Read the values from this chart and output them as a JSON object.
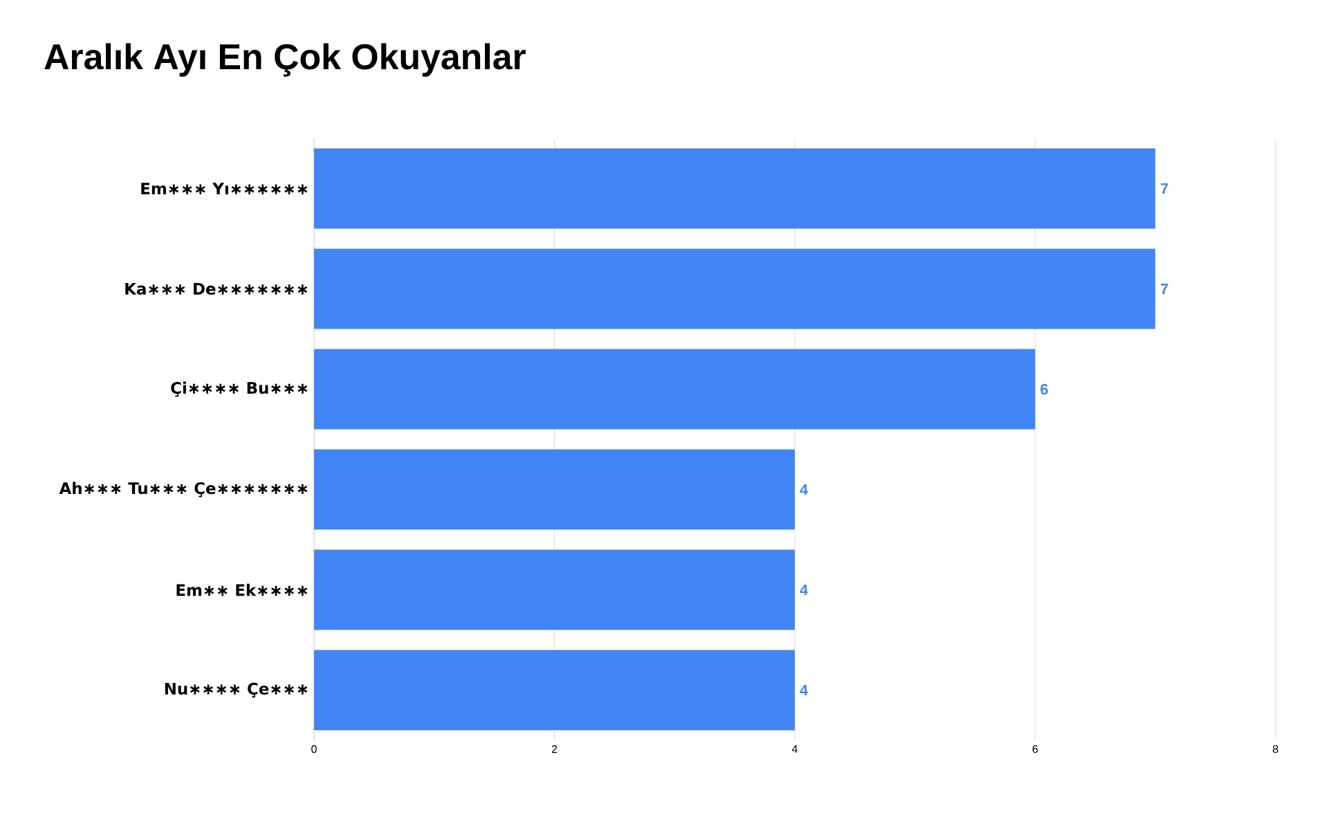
{
  "chart_data": {
    "type": "bar",
    "orientation": "horizontal",
    "title": "Aralık Ayı En Çok Okuyanlar",
    "categories": [
      "Em∗∗∗ Yı∗∗∗∗∗∗",
      "Ka∗∗∗ De∗∗∗∗∗∗∗",
      "Çi∗∗∗∗ Bu∗∗∗",
      "Ah∗∗∗ Tu∗∗∗ Çe∗∗∗∗∗∗∗",
      "Em∗∗ Ek∗∗∗∗",
      "Nu∗∗∗∗ Çe∗∗∗"
    ],
    "values": [
      7,
      7,
      6,
      4,
      4,
      4
    ],
    "color": "#4285f4",
    "xlim": [
      0,
      8
    ],
    "xticks": [
      0,
      2,
      4,
      6,
      8
    ],
    "grid": "x",
    "data_labels": true
  }
}
